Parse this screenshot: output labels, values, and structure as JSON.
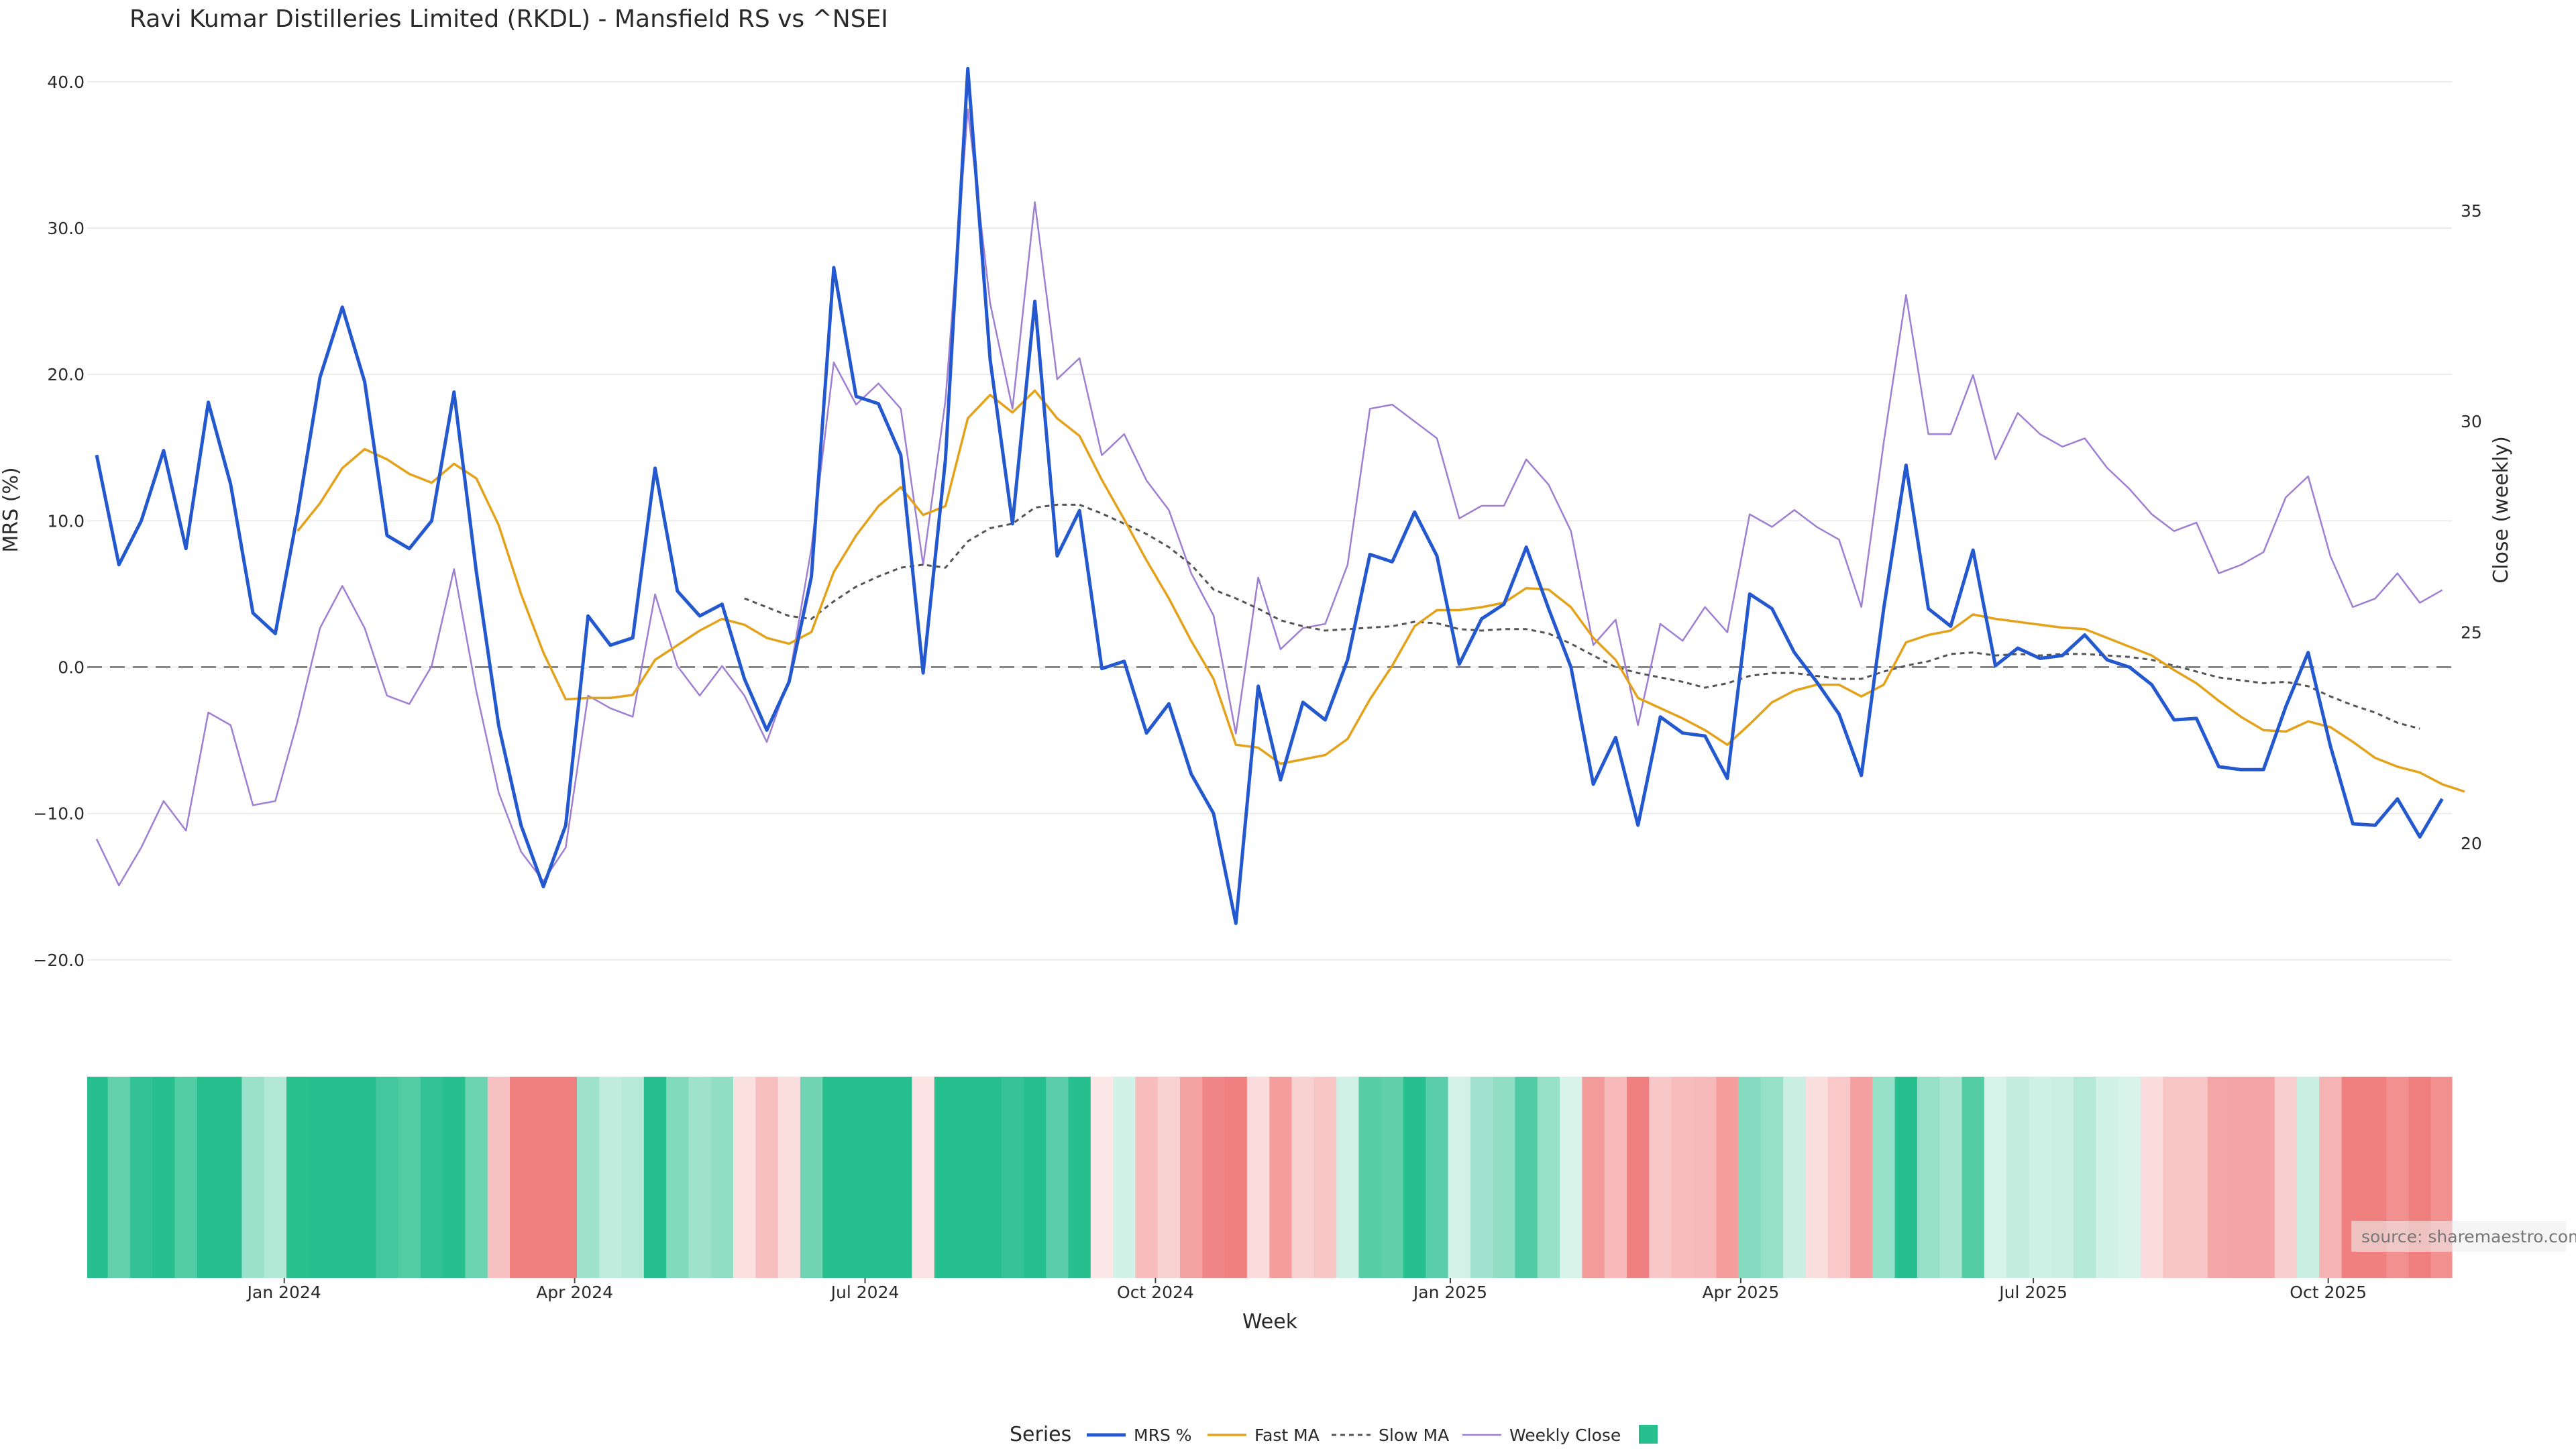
{
  "chart_data": {
    "type": "line",
    "title": "Ravi Kumar Distilleries Limited (RKDL) - Mansfield RS vs ^NSEI",
    "xlabel": "Week",
    "ylabel_left": "MRS (%)",
    "ylabel_right": "Close (weekly)",
    "left_ylim": [
      -25,
      41
    ],
    "left_ticks": [
      "40.0",
      "30.0",
      "20.0",
      "10.0",
      "0.0",
      "−10.0",
      "−20.0"
    ],
    "left_tick_values": [
      40,
      30,
      20,
      10,
      0,
      -10,
      -20
    ],
    "right_ylim": [
      15.5,
      38.4
    ],
    "right_ticks": [
      "35",
      "30",
      "25",
      "20"
    ],
    "right_tick_values": [
      35,
      30,
      25,
      20
    ],
    "x_ticks": [
      "Jan 2024",
      "Apr 2024",
      "Jul 2024",
      "Oct 2024",
      "Jan 2025",
      "Apr 2025",
      "Jul 2025",
      "Oct 2025"
    ],
    "x_tick_weeks": [
      8.4,
      21.4,
      34.4,
      47.4,
      60.6,
      73.6,
      86.7,
      99.9
    ],
    "zero_line": 0,
    "legend": {
      "title": "Series",
      "position": "bottom-center",
      "items": [
        "MRS %",
        "Fast MA",
        "Slow MA",
        "Weekly Close",
        ""
      ]
    },
    "colors": {
      "mrs": "#2358cf",
      "fast_ma": "#e3a21a",
      "slow_ma": "#555555",
      "weekly_close": "#9e7fd1",
      "positive": "#27bf8d",
      "negative": "#f08080",
      "zero_line": "#888888",
      "grid": "#ececec"
    },
    "series": [
      {
        "name": "MRS %",
        "start_week": 0,
        "values": [
          14.5,
          7,
          10,
          14.8,
          8.1,
          18.1,
          12.5,
          3.7,
          2.3,
          10.5,
          19.8,
          24.6,
          19.5,
          9,
          8.1,
          10,
          18.8,
          6.5,
          -4,
          -10.8,
          -15,
          -10.8,
          3.5,
          1.5,
          2,
          13.6,
          5.2,
          3.5,
          4.3,
          -0.8,
          -4.3,
          -1,
          6.2,
          27.3,
          18.5,
          18,
          14.5,
          -0.4,
          14.2,
          40.9,
          21,
          9.8,
          25,
          7.6,
          10.7,
          -0.1,
          0.4,
          -4.5,
          -2.5,
          -7.3,
          -10,
          -17.5,
          -1.3,
          -7.7,
          -2.4,
          -3.6,
          0.5,
          7.7,
          7.2,
          10.6,
          7.6,
          0.2,
          3.3,
          4.3,
          8.2,
          4,
          0,
          -8,
          -4.8,
          -10.8,
          -3.4,
          -4.5,
          -4.7,
          -7.6,
          5,
          4,
          1,
          -1,
          -3.2,
          -7.4,
          4,
          13.8,
          4,
          2.8,
          8,
          0.1,
          1.3,
          0.6,
          0.8,
          2.2,
          0.5,
          0,
          -1.2,
          -3.6,
          -3.5,
          -6.8,
          -7,
          -7,
          -2.7,
          1,
          -5.4,
          -10.7,
          -10.8,
          -9,
          -11.6,
          -9
        ]
      },
      {
        "name": "Fast MA",
        "start_week": 9,
        "values": [
          9.3,
          11.2,
          13.6,
          14.9,
          14.2,
          13.2,
          12.6,
          13.9,
          12.9,
          9.7,
          5,
          1,
          -2.2,
          -2.1,
          -2.1,
          -1.9,
          0.5,
          1.5,
          2.5,
          3.3,
          2.9,
          2,
          1.6,
          2.4,
          6.5,
          9,
          11,
          12.3,
          10.4,
          11,
          17,
          18.6,
          17.4,
          18.9,
          17,
          15.8,
          12.8,
          10.1,
          7.3,
          4.7,
          1.8,
          -0.8,
          -5.3,
          -5.5,
          -6.6,
          -6.3,
          -6,
          -4.9,
          -2.2,
          0.1,
          2.8,
          3.9,
          3.9,
          4.1,
          4.4,
          5.4,
          5.3,
          4.1,
          2,
          0.5,
          -2.1,
          -2.8,
          -3.5,
          -4.3,
          -5.3,
          -3.9,
          -2.4,
          -1.6,
          -1.2,
          -1.2,
          -2,
          -1.2,
          1.7,
          2.2,
          2.5,
          3.6,
          3.3,
          3.1,
          2.9,
          2.7,
          2.6,
          2,
          1.4,
          0.8,
          -0.2,
          -1.1,
          -2.3,
          -3.4,
          -4.3,
          -4.4,
          -3.7,
          -4.1,
          -5.1,
          -6.2,
          -6.8,
          -7.2,
          -8,
          -8.5
        ]
      },
      {
        "name": "Slow MA",
        "start_week": 29,
        "values": [
          4.7,
          4.1,
          3.5,
          3.3,
          4.5,
          5.5,
          6.2,
          6.8,
          7,
          6.8,
          8.6,
          9.5,
          9.8,
          10.9,
          11.1,
          11.1,
          10.5,
          9.8,
          9.1,
          8.2,
          7,
          5.3,
          4.7,
          4,
          3.2,
          2.8,
          2.5,
          2.6,
          2.7,
          2.8,
          3.1,
          3,
          2.6,
          2.5,
          2.6,
          2.6,
          2.3,
          1.6,
          0.8,
          0,
          -0.4,
          -0.7,
          -1,
          -1.4,
          -1.1,
          -0.6,
          -0.4,
          -0.4,
          -0.6,
          -0.8,
          -0.8,
          -0.3,
          0.1,
          0.4,
          0.9,
          1,
          0.8,
          0.9,
          0.8,
          0.9,
          0.9,
          0.8,
          0.7,
          0.5,
          0.1,
          -0.3,
          -0.7,
          -0.9,
          -1.1,
          -1,
          -1.3,
          -2,
          -2.6,
          -3.1,
          -3.8,
          -4.2
        ]
      },
      {
        "name": "Weekly Close",
        "axis": "right",
        "start_week": 0,
        "values": [
          20.1,
          19,
          19.9,
          21,
          20.3,
          23.1,
          22.8,
          20.9,
          21,
          22.9,
          25.1,
          26.1,
          25.1,
          23.5,
          23.3,
          24.2,
          26.5,
          23.6,
          21.2,
          19.8,
          19.1,
          19.9,
          23.5,
          23.2,
          23,
          25.9,
          24.2,
          23.5,
          24.2,
          23.5,
          22.4,
          23.9,
          27,
          31.4,
          30.4,
          30.9,
          30.3,
          26.6,
          30.5,
          37.4,
          32.8,
          30.3,
          35.2,
          31,
          31.5,
          29.2,
          29.7,
          28.6,
          27.9,
          26.4,
          25.4,
          22.6,
          26.3,
          24.6,
          25.1,
          25.2,
          26.6,
          30.3,
          30.4,
          30,
          29.6,
          27.7,
          28,
          28,
          29.1,
          28.5,
          27.4,
          24.7,
          25.3,
          22.8,
          25.2,
          24.8,
          25.6,
          25,
          27.8,
          27.5,
          27.9,
          27.5,
          27.2,
          25.6,
          29.5,
          33,
          29.7,
          29.7,
          31.1,
          29.1,
          30.2,
          29.7,
          29.4,
          29.6,
          28.9,
          28.4,
          27.8,
          27.4,
          27.6,
          26.4,
          26.6,
          26.9,
          28.2,
          28.7,
          26.8,
          25.6,
          25.8,
          26.4,
          25.7,
          26
        ]
      }
    ],
    "band_values_note": "strip colour per week = MRS % value"
  },
  "source_text": "source: sharemaestro.com"
}
